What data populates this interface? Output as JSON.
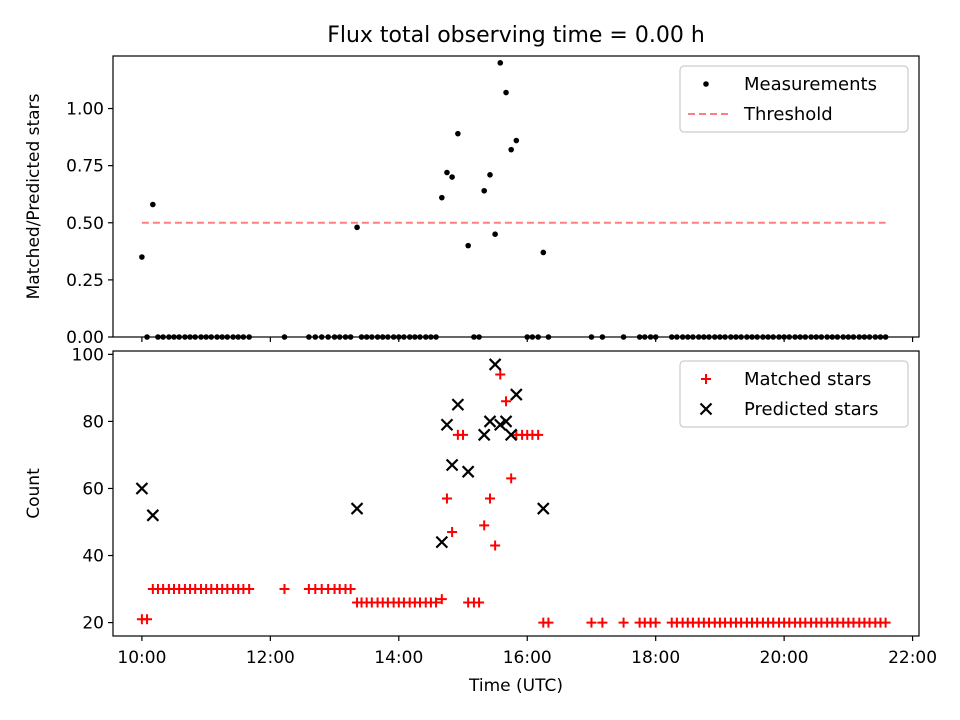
{
  "title": "Flux total observing time = 0.00 h",
  "colors": {
    "measurement": "#000000",
    "threshold": "#ff7f7f",
    "matched": "#ff0000",
    "predicted": "#000000"
  },
  "chart_data": [
    {
      "type": "scatter",
      "ylabel": "Matched/Predicted stars",
      "xlim": [
        9.55,
        22.1
      ],
      "ylim": [
        0,
        1.23
      ],
      "yticks": [
        "0.00",
        "0.25",
        "0.50",
        "0.75",
        "1.00"
      ],
      "grid": false,
      "legend_position": "top-right",
      "series": [
        {
          "name": "Measurements",
          "marker": "dot",
          "x": [
            10.0,
            10.17,
            13.35,
            14.67,
            14.75,
            14.83,
            14.92,
            15.08,
            15.33,
            15.42,
            15.5,
            15.58,
            15.67,
            15.75,
            15.83,
            16.25,
            10.08,
            10.25,
            10.33,
            10.42,
            10.5,
            10.58,
            10.67,
            10.75,
            10.83,
            10.92,
            11.0,
            11.08,
            11.17,
            11.25,
            11.33,
            11.42,
            11.5,
            11.58,
            11.67,
            12.22,
            12.6,
            12.7,
            12.8,
            12.9,
            13.0,
            13.08,
            13.17,
            13.25,
            13.42,
            13.5,
            13.58,
            13.67,
            13.75,
            13.83,
            13.92,
            14.0,
            14.08,
            14.17,
            14.25,
            14.33,
            14.42,
            14.5,
            14.58,
            15.17,
            15.25,
            16.0,
            16.08,
            16.17,
            16.33,
            17.0,
            17.17,
            17.5,
            17.75,
            17.83,
            17.92,
            18.0,
            18.25,
            18.33,
            18.42,
            18.5,
            18.58,
            18.67,
            18.75,
            18.83,
            18.92,
            19.0,
            19.08,
            19.17,
            19.25,
            19.33,
            19.42,
            19.5,
            19.58,
            19.67,
            19.75,
            19.83,
            19.92,
            20.0,
            20.08,
            20.17,
            20.25,
            20.33,
            20.42,
            20.5,
            20.58,
            20.67,
            20.75,
            20.83,
            20.92,
            21.0,
            21.08,
            21.17,
            21.25,
            21.33,
            21.42,
            21.5,
            21.58
          ],
          "y": [
            0.35,
            0.58,
            0.48,
            0.61,
            0.72,
            0.7,
            0.89,
            0.4,
            0.64,
            0.71,
            0.45,
            1.2,
            1.07,
            0.82,
            0.86,
            0.37,
            0,
            0,
            0,
            0,
            0,
            0,
            0,
            0,
            0,
            0,
            0,
            0,
            0,
            0,
            0,
            0,
            0,
            0,
            0,
            0,
            0,
            0,
            0,
            0,
            0,
            0,
            0,
            0,
            0,
            0,
            0,
            0,
            0,
            0,
            0,
            0,
            0,
            0,
            0,
            0,
            0,
            0,
            0,
            0,
            0,
            0,
            0,
            0,
            0,
            0,
            0,
            0,
            0,
            0,
            0,
            0,
            0,
            0,
            0,
            0,
            0,
            0,
            0,
            0,
            0,
            0,
            0,
            0,
            0,
            0,
            0,
            0,
            0,
            0,
            0,
            0,
            0,
            0,
            0,
            0,
            0,
            0,
            0,
            0,
            0,
            0,
            0,
            0,
            0,
            0,
            0,
            0,
            0,
            0,
            0,
            0,
            0
          ]
        },
        {
          "name": "Threshold",
          "marker": "dashed-line",
          "x": [
            10.0,
            21.58
          ],
          "y": [
            0.5,
            0.5
          ]
        }
      ]
    },
    {
      "type": "scatter",
      "xlabel": "Time (UTC)",
      "ylabel": "Count",
      "xlim": [
        9.55,
        22.1
      ],
      "ylim": [
        16,
        101
      ],
      "yticks": [
        "20",
        "40",
        "60",
        "80",
        "100"
      ],
      "xticks": [
        {
          "value": 10,
          "label": "10:00"
        },
        {
          "value": 12,
          "label": "12:00"
        },
        {
          "value": 14,
          "label": "14:00"
        },
        {
          "value": 16,
          "label": "16:00"
        },
        {
          "value": 18,
          "label": "18:00"
        },
        {
          "value": 20,
          "label": "20:00"
        },
        {
          "value": 22,
          "label": "22:00"
        }
      ],
      "grid": false,
      "legend_position": "top-right",
      "series": [
        {
          "name": "Matched stars",
          "marker": "plus",
          "x": [
            10.0,
            10.08,
            10.17,
            10.25,
            10.33,
            10.42,
            10.5,
            10.58,
            10.67,
            10.75,
            10.83,
            10.92,
            11.0,
            11.08,
            11.17,
            11.25,
            11.33,
            11.42,
            11.5,
            11.58,
            11.67,
            12.22,
            12.6,
            12.7,
            12.8,
            12.9,
            13.0,
            13.08,
            13.17,
            13.25,
            13.35,
            13.42,
            13.5,
            13.58,
            13.67,
            13.75,
            13.83,
            13.92,
            14.0,
            14.08,
            14.17,
            14.25,
            14.33,
            14.42,
            14.5,
            14.58,
            14.67,
            14.75,
            14.83,
            14.92,
            15.0,
            15.08,
            15.17,
            15.25,
            15.33,
            15.42,
            15.5,
            15.58,
            15.67,
            15.75,
            15.83,
            15.92,
            16.0,
            16.08,
            16.17,
            16.25,
            16.33,
            17.0,
            17.17,
            17.5,
            17.75,
            17.83,
            17.92,
            18.0,
            18.25,
            18.33,
            18.42,
            18.5,
            18.58,
            18.67,
            18.75,
            18.83,
            18.92,
            19.0,
            19.08,
            19.17,
            19.25,
            19.33,
            19.42,
            19.5,
            19.58,
            19.67,
            19.75,
            19.83,
            19.92,
            20.0,
            20.08,
            20.17,
            20.25,
            20.33,
            20.42,
            20.5,
            20.58,
            20.67,
            20.75,
            20.83,
            20.92,
            21.0,
            21.08,
            21.17,
            21.25,
            21.33,
            21.42,
            21.5,
            21.58
          ],
          "y": [
            21,
            21,
            30,
            30,
            30,
            30,
            30,
            30,
            30,
            30,
            30,
            30,
            30,
            30,
            30,
            30,
            30,
            30,
            30,
            30,
            30,
            30,
            30,
            30,
            30,
            30,
            30,
            30,
            30,
            30,
            26,
            26,
            26,
            26,
            26,
            26,
            26,
            26,
            26,
            26,
            26,
            26,
            26,
            26,
            26,
            26,
            27,
            57,
            47,
            76,
            76,
            26,
            26,
            26,
            49,
            57,
            43,
            94,
            86,
            63,
            76,
            76,
            76,
            76,
            76,
            20,
            20,
            20,
            20,
            20,
            20,
            20,
            20,
            20,
            20,
            20,
            20,
            20,
            20,
            20,
            20,
            20,
            20,
            20,
            20,
            20,
            20,
            20,
            20,
            20,
            20,
            20,
            20,
            20,
            20,
            20,
            20,
            20,
            20,
            20,
            20,
            20,
            20,
            20,
            20,
            20,
            20,
            20,
            20,
            20,
            20,
            20,
            20,
            20,
            20
          ]
        },
        {
          "name": "Predicted stars",
          "marker": "x",
          "x": [
            10.0,
            10.17,
            13.35,
            14.67,
            14.75,
            14.83,
            14.92,
            15.08,
            15.33,
            15.42,
            15.5,
            15.58,
            15.67,
            15.75,
            15.83,
            16.25
          ],
          "y": [
            60,
            52,
            54,
            44,
            79,
            67,
            85,
            65,
            76,
            80,
            97,
            79,
            80,
            76,
            88,
            54
          ]
        }
      ]
    }
  ]
}
